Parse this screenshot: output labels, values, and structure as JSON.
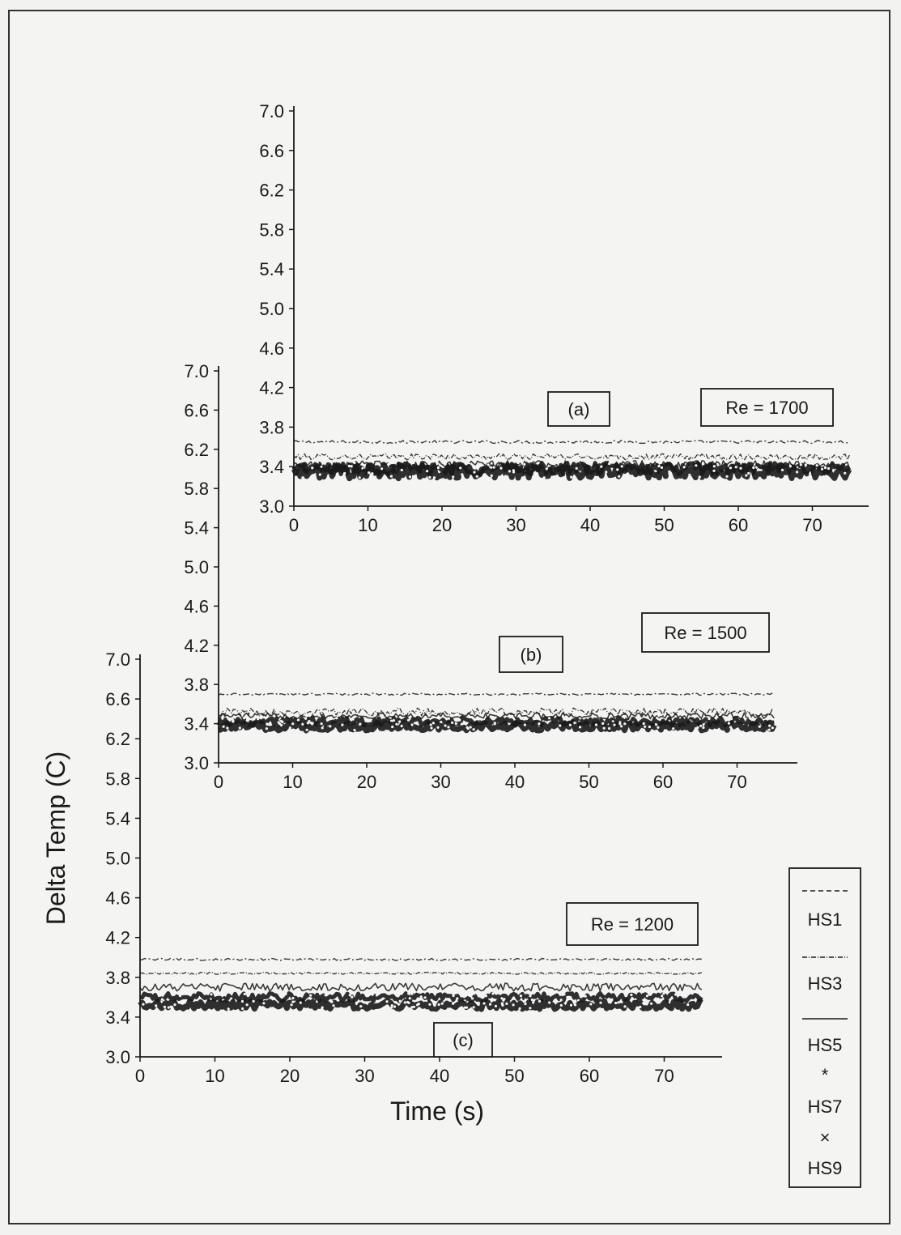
{
  "chart_data": [
    {
      "type": "line",
      "panel_label": "(a)",
      "annotation": "Re = 1700",
      "x_ticks": [
        "0",
        "10",
        "20",
        "30",
        "40",
        "50",
        "60",
        "70"
      ],
      "y_ticks": [
        "3.0",
        "3.4",
        "3.8",
        "4.2",
        "4.6",
        "5.0",
        "5.4",
        "5.8",
        "6.2",
        "6.6",
        "7.0"
      ],
      "xlim": [
        0,
        78
      ],
      "ylim": [
        3.0,
        7.0
      ],
      "x_end": 75,
      "series": [
        {
          "name": "HS1",
          "level": 3.65,
          "noise": 0.015
        },
        {
          "name": "HS3",
          "level": 3.5,
          "noise": 0.03
        },
        {
          "name": "HS5",
          "level": 3.42,
          "noise": 0.04
        },
        {
          "name": "HS7",
          "level": 3.38,
          "noise": 0.06
        },
        {
          "name": "HS9",
          "level": 3.35,
          "noise": 0.07
        }
      ]
    },
    {
      "type": "line",
      "panel_label": "(b)",
      "annotation": "Re = 1500",
      "x_ticks": [
        "0",
        "10",
        "20",
        "30",
        "40",
        "50",
        "60",
        "70"
      ],
      "y_ticks": [
        "3.0",
        "3.4",
        "3.8",
        "4.2",
        "4.6",
        "5.0",
        "5.4",
        "5.8",
        "6.2",
        "6.6",
        "7.0"
      ],
      "xlim": [
        0,
        78
      ],
      "ylim": [
        3.0,
        7.0
      ],
      "x_end": 75,
      "series": [
        {
          "name": "HS1",
          "level": 3.7,
          "noise": 0.01
        },
        {
          "name": "HS3",
          "level": 3.52,
          "noise": 0.04
        },
        {
          "name": "HS5",
          "level": 3.48,
          "noise": 0.03
        },
        {
          "name": "HS7",
          "level": 3.42,
          "noise": 0.04
        },
        {
          "name": "HS9",
          "level": 3.37,
          "noise": 0.04
        }
      ]
    },
    {
      "type": "line",
      "panel_label": "(c)",
      "annotation": "Re = 1200",
      "x_ticks": [
        "0",
        "10",
        "20",
        "30",
        "40",
        "50",
        "60",
        "70"
      ],
      "y_ticks": [
        "3.0",
        "3.4",
        "3.8",
        "4.2",
        "4.6",
        "5.0",
        "5.4",
        "5.8",
        "6.2",
        "6.6",
        "7.0"
      ],
      "xlim": [
        0,
        78
      ],
      "ylim": [
        3.0,
        7.0
      ],
      "x_end": 75,
      "series": [
        {
          "name": "HS1",
          "level": 3.98,
          "noise": 0.01
        },
        {
          "name": "HS3",
          "level": 3.84,
          "noise": 0.01
        },
        {
          "name": "HS5",
          "level": 3.7,
          "noise": 0.04
        },
        {
          "name": "HS7",
          "level": 3.6,
          "noise": 0.04
        },
        {
          "name": "HS9",
          "level": 3.52,
          "noise": 0.04
        }
      ]
    }
  ],
  "axis_titles": {
    "y": "Delta Temp (C)",
    "x": "Time (s)"
  },
  "legend": {
    "entries": [
      "HS1",
      "HS3",
      "HS5",
      "HS7",
      "HS9"
    ],
    "markers": {
      "HS7": "*",
      "HS9": "×"
    }
  },
  "colors": {
    "ink": "#1a1a1a",
    "paper": "#f4f4f2"
  }
}
